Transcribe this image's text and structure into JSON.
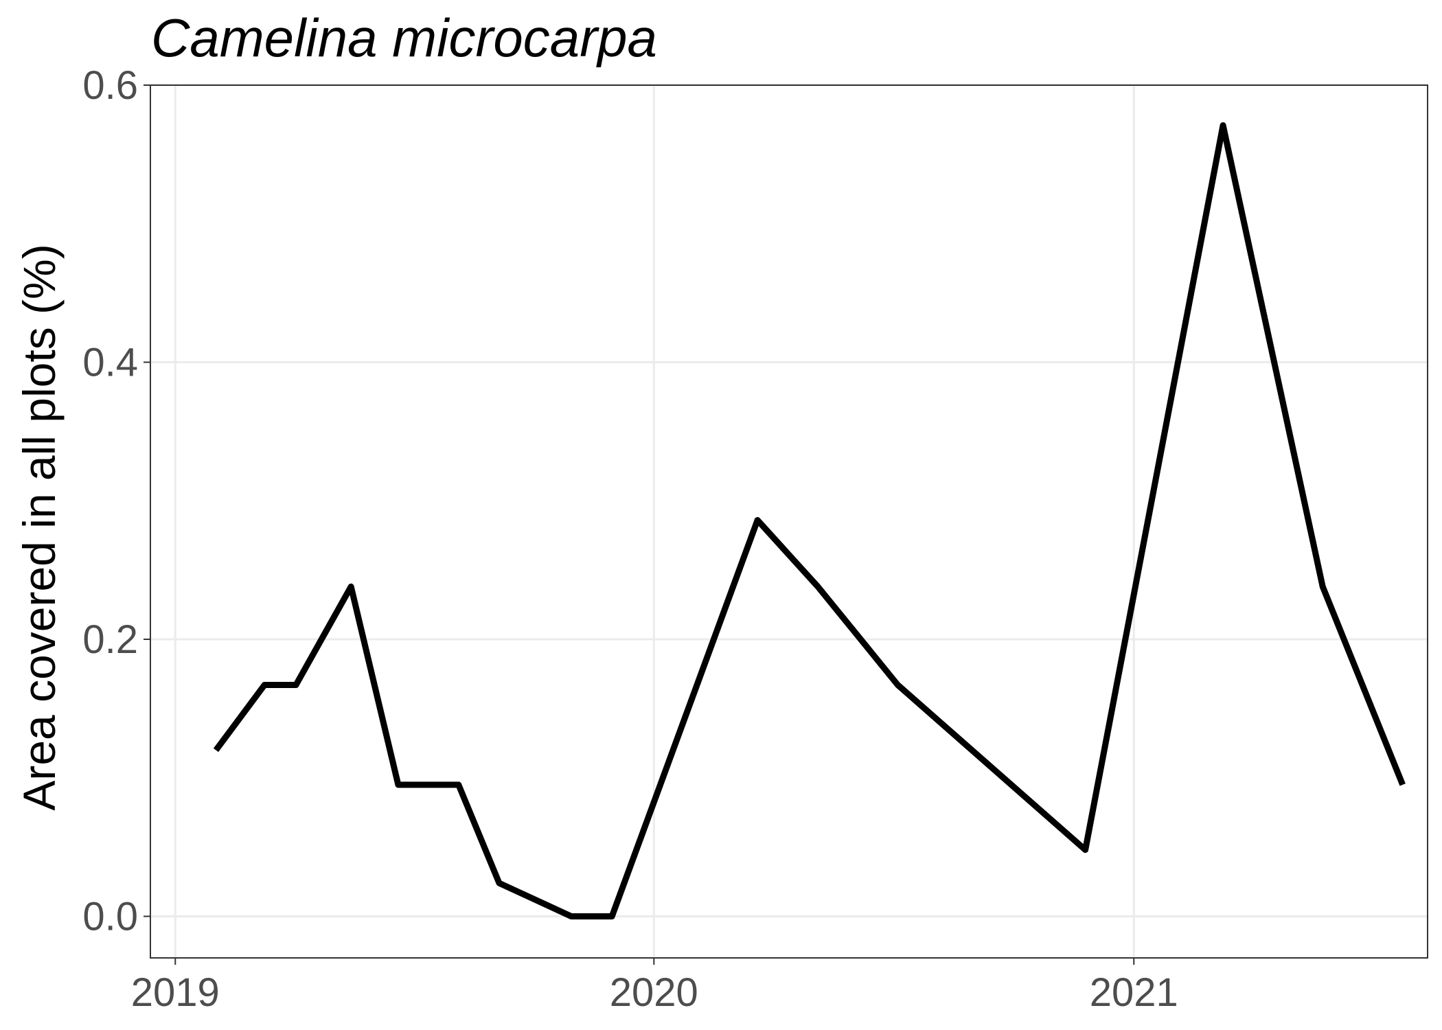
{
  "chart_data": {
    "type": "line",
    "title": "Camelina microcarpa",
    "xlabel": "",
    "ylabel": "Area covered in all plots (%)",
    "xlim": [
      "2018-12-13",
      "2021-08-13"
    ],
    "ylim": [
      -0.03,
      0.6
    ],
    "x_ticks": [
      "2019-01-01",
      "2020-01-01",
      "2021-01-01"
    ],
    "x_tick_labels": [
      "2019",
      "2020",
      "2021"
    ],
    "y_ticks": [
      0.0,
      0.2,
      0.4,
      0.6
    ],
    "y_tick_labels": [
      "0.0",
      "0.2",
      "0.4",
      "0.6"
    ],
    "grid": true,
    "line_color": "#000000",
    "series": [
      {
        "x": [
          "2019-02-01",
          "2019-03-10",
          "2019-04-03",
          "2019-05-15",
          "2019-06-20",
          "2019-08-05",
          "2019-09-05",
          "2019-10-30",
          "2019-11-30",
          "2020-03-20",
          "2020-05-05",
          "2020-07-05",
          "2020-11-25",
          "2021-03-10",
          "2021-05-25",
          "2021-07-25"
        ],
        "values": [
          0.12,
          0.167,
          0.167,
          0.238,
          0.095,
          0.095,
          0.024,
          0.0,
          0.0,
          0.286,
          0.238,
          0.167,
          0.048,
          0.571,
          0.238,
          0.095
        ]
      }
    ]
  }
}
